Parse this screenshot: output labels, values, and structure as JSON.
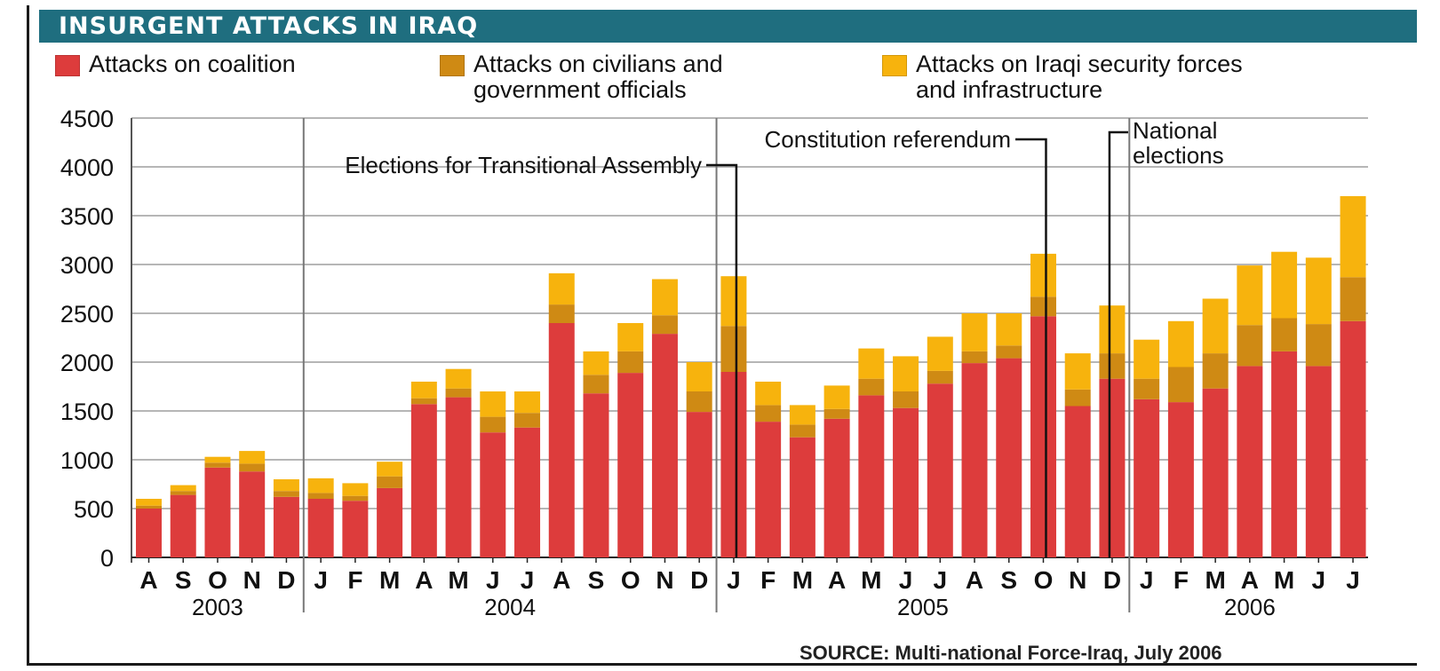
{
  "chart_data": {
    "type": "bar",
    "stacked": true,
    "title": "INSURGENT ATTACKS IN IRAQ",
    "categories": [
      "A",
      "S",
      "O",
      "N",
      "D",
      "J",
      "F",
      "M",
      "A",
      "M",
      "J",
      "J",
      "A",
      "S",
      "O",
      "N",
      "D",
      "J",
      "F",
      "M",
      "A",
      "M",
      "J",
      "J",
      "A",
      "S",
      "O",
      "N",
      "D",
      "J",
      "F",
      "M",
      "A",
      "M",
      "J",
      "J"
    ],
    "years": [
      {
        "label": "2003",
        "start": 0,
        "end": 4
      },
      {
        "label": "2004",
        "start": 5,
        "end": 16
      },
      {
        "label": "2005",
        "start": 17,
        "end": 28
      },
      {
        "label": "2006",
        "start": 29,
        "end": 35
      }
    ],
    "ylim": [
      0,
      4500
    ],
    "yticks": [
      0,
      500,
      1000,
      1500,
      2000,
      2500,
      3000,
      3500,
      4000,
      4500
    ],
    "grid": true,
    "legend_position": "top",
    "series": [
      {
        "name": "Attacks on coalition",
        "color": "#dd3c3c",
        "values": [
          500,
          640,
          920,
          880,
          620,
          600,
          580,
          710,
          1570,
          1640,
          1280,
          1330,
          2400,
          1680,
          1890,
          2290,
          1490,
          1900,
          1390,
          1230,
          1420,
          1660,
          1530,
          1780,
          1990,
          2040,
          2470,
          1550,
          1830,
          1620,
          1590,
          1730,
          1960,
          2110,
          1960,
          2420
        ]
      },
      {
        "name": "Attacks on civilians and\ngovernment officials",
        "color": "#cf8a14",
        "values": [
          30,
          40,
          50,
          80,
          60,
          60,
          50,
          120,
          60,
          90,
          160,
          150,
          190,
          190,
          220,
          190,
          210,
          470,
          170,
          130,
          100,
          170,
          170,
          130,
          120,
          130,
          200,
          170,
          260,
          210,
          360,
          360,
          420,
          340,
          430,
          450
        ]
      },
      {
        "name": "Attacks on Iraqi security forces\nand infrastructure",
        "color": "#f7b30d",
        "values": [
          70,
          60,
          60,
          130,
          120,
          150,
          130,
          150,
          170,
          200,
          260,
          220,
          320,
          240,
          290,
          370,
          300,
          510,
          240,
          200,
          240,
          310,
          360,
          350,
          390,
          330,
          440,
          370,
          490,
          400,
          470,
          560,
          610,
          680,
          680,
          830
        ]
      }
    ],
    "annotations": [
      {
        "label": "Elections for Transitional Assembly",
        "index": 17
      },
      {
        "label": "Constitution referendum",
        "index": 26
      },
      {
        "label": "National\nelections",
        "index": 28
      }
    ],
    "source": "SOURCE: Multi-national Force-Iraq, July 2006"
  }
}
